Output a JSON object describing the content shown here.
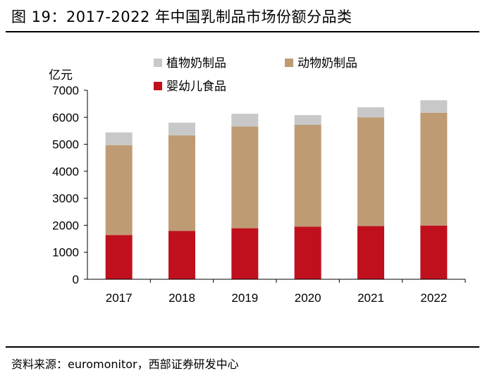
{
  "figure": {
    "title": "图 19：2017-2022 年中国乳制品市场份额分品类",
    "source": "资料来源：euromonitor，西部证券研发中心"
  },
  "chart_data": {
    "type": "bar",
    "stacked": true,
    "categories": [
      "2017",
      "2018",
      "2019",
      "2020",
      "2021",
      "2022"
    ],
    "series": [
      {
        "name": "婴幼儿食品",
        "color": "#C0101E",
        "values": [
          1640,
          1790,
          1890,
          1950,
          1970,
          1990
        ]
      },
      {
        "name": "动物奶制品",
        "color": "#BF9B74",
        "values": [
          3330,
          3540,
          3770,
          3770,
          4030,
          4180
        ]
      },
      {
        "name": "植物奶制品",
        "color": "#C8C8C8",
        "values": [
          470,
          470,
          470,
          360,
          370,
          460
        ]
      }
    ],
    "ylabel": "亿元",
    "ylim": [
      0,
      7000
    ],
    "yticks": [
      0,
      1000,
      2000,
      3000,
      4000,
      5000,
      6000,
      7000
    ],
    "grid": false,
    "legend": "top"
  }
}
